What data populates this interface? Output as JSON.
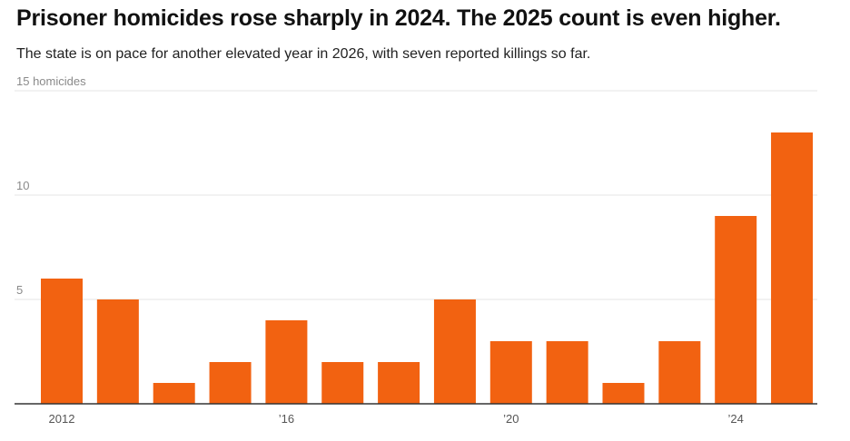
{
  "header": {
    "title": "Prisoner homicides rose sharply in 2024. The 2025 count is even higher.",
    "subtitle": "The state is on pace for another elevated year in 2026, with seven reported killings so far."
  },
  "colors": {
    "bar": "#f26211",
    "grid": "#e6e6e6",
    "axis": "#333333"
  },
  "chart_data": {
    "type": "bar",
    "title": "Prisoner homicides rose sharply in 2024. The 2025 count is even higher.",
    "subtitle": "The state is on pace for another elevated year in 2026, with seven reported killings so far.",
    "categories": [
      "2012",
      "2013",
      "2014",
      "2015",
      "2016",
      "2017",
      "2018",
      "2019",
      "2020",
      "2021",
      "2022",
      "2023",
      "2024",
      "2025"
    ],
    "values": [
      6,
      5,
      1,
      2,
      4,
      2,
      2,
      5,
      3,
      3,
      1,
      3,
      9,
      13
    ],
    "x_tick_labels": [
      {
        "category": "2012",
        "label": "2012"
      },
      {
        "category": "2016",
        "label": "’16"
      },
      {
        "category": "2020",
        "label": "’20"
      },
      {
        "category": "2024",
        "label": "’24"
      }
    ],
    "y_ticks": [
      {
        "value": 5,
        "label": "5"
      },
      {
        "value": 10,
        "label": "10"
      },
      {
        "value": 15,
        "label": "15 homicides"
      }
    ],
    "ylim": [
      0,
      15
    ],
    "grid": true,
    "legend": "none"
  }
}
